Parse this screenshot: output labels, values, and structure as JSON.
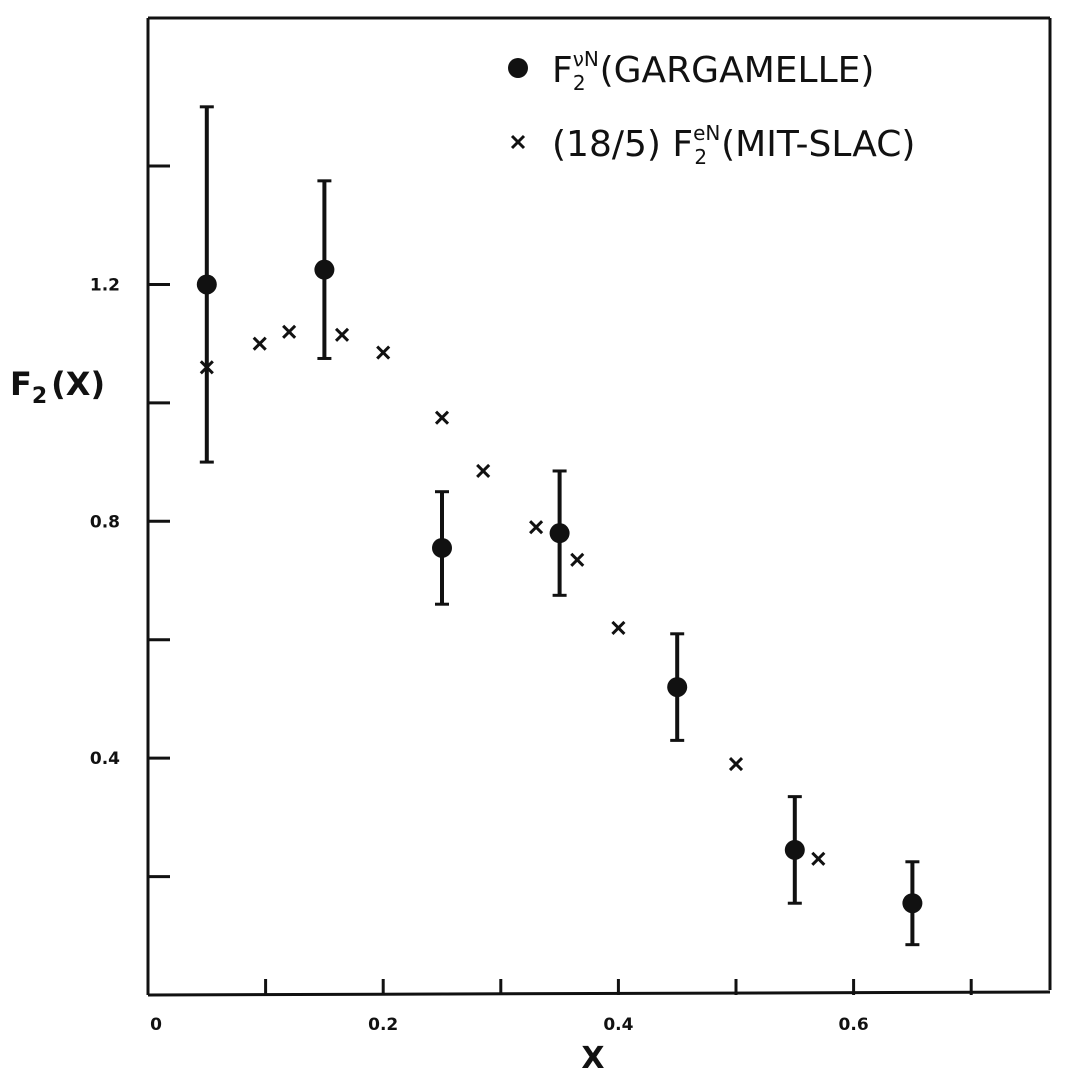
{
  "chart_data": {
    "type": "scatter",
    "xlabel": "X",
    "ylabel_main": "F",
    "ylabel_sub": "2",
    "ylabel_arg": "(X)",
    "xlim": [
      0,
      0.75
    ],
    "ylim": [
      0,
      1.65
    ],
    "x_ticks": [
      0,
      0.1,
      0.2,
      0.3,
      0.4,
      0.5,
      0.6,
      0.7
    ],
    "x_tick_labels": [
      {
        "value": 0,
        "label": "0"
      },
      {
        "value": 0.2,
        "label": "0.2"
      },
      {
        "value": 0.4,
        "label": "0.4"
      },
      {
        "value": 0.6,
        "label": "0.6"
      }
    ],
    "y_ticks": [
      0.2,
      0.4,
      0.6,
      0.8,
      1.0,
      1.2,
      1.4
    ],
    "y_tick_labels": [
      {
        "value": 0.4,
        "label": "0.4"
      },
      {
        "value": 0.8,
        "label": "0.8"
      },
      {
        "value": 1.2,
        "label": "1.2"
      }
    ],
    "grid": false,
    "legend_position": "top-right",
    "series": [
      {
        "name": "F2νN (GARGAMELLE)",
        "legend": {
          "prefix": "",
          "main": "F",
          "sub": "2",
          "sup": "νN",
          "suffix": "(GARGAMELLE)"
        },
        "marker": "filled-circle",
        "points": [
          {
            "x": 0.05,
            "y": 1.2,
            "err": 0.3
          },
          {
            "x": 0.15,
            "y": 1.225,
            "err": 0.15
          },
          {
            "x": 0.25,
            "y": 0.755,
            "err": 0.095
          },
          {
            "x": 0.35,
            "y": 0.78,
            "err": 0.105
          },
          {
            "x": 0.45,
            "y": 0.52,
            "err": 0.09
          },
          {
            "x": 0.55,
            "y": 0.245,
            "err": 0.09
          },
          {
            "x": 0.65,
            "y": 0.155,
            "err": 0.07
          }
        ]
      },
      {
        "name": "(18/5) F2eN(MIT-SLAC)",
        "legend": {
          "prefix": "(18/5) ",
          "main": "F",
          "sub": "2",
          "sup": "eN",
          "suffix": "(MIT-SLAC)"
        },
        "marker": "cross",
        "points": [
          {
            "x": 0.05,
            "y": 1.06
          },
          {
            "x": 0.095,
            "y": 1.1
          },
          {
            "x": 0.12,
            "y": 1.12
          },
          {
            "x": 0.165,
            "y": 1.115
          },
          {
            "x": 0.2,
            "y": 1.085
          },
          {
            "x": 0.25,
            "y": 0.975
          },
          {
            "x": 0.285,
            "y": 0.885
          },
          {
            "x": 0.33,
            "y": 0.79
          },
          {
            "x": 0.365,
            "y": 0.735
          },
          {
            "x": 0.4,
            "y": 0.62
          },
          {
            "x": 0.5,
            "y": 0.39
          },
          {
            "x": 0.57,
            "y": 0.23
          }
        ]
      }
    ]
  }
}
